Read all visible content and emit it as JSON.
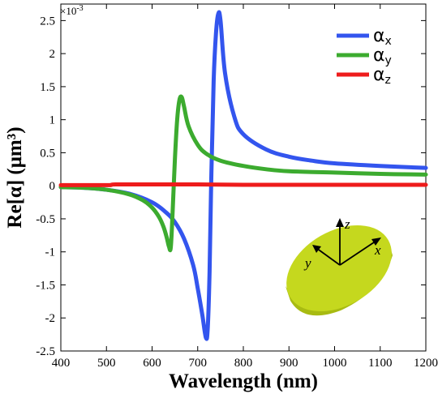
{
  "chart_data": {
    "type": "line",
    "xlabel": "Wavelength (nm)",
    "ylabel": "Re[α] (μm³)",
    "y_multiplier": "×10",
    "y_multiplier_exp": "-3",
    "xlim": [
      400,
      1200
    ],
    "ylim": [
      -2.5,
      2.75
    ],
    "x_ticks": [
      "400",
      "500",
      "600",
      "700",
      "800",
      "900",
      "1000",
      "1100",
      "1200"
    ],
    "y_ticks": [
      "-2.5",
      "-2",
      "-1.5",
      "-1",
      "-0.5",
      "0",
      "0.5",
      "1",
      "1.5",
      "2",
      "2.5"
    ],
    "legend_position": "top-right",
    "series": [
      {
        "name": "αx",
        "symbol": "α",
        "subscript": "x",
        "color": "#3355ee",
        "x": [
          400,
          450,
          500,
          550,
          600,
          630,
          650,
          670,
          690,
          700,
          710,
          718,
          722,
          726,
          730,
          735,
          740,
          745,
          750,
          760,
          780,
          800,
          850,
          900,
          950,
          1000,
          1100,
          1200
        ],
        "y": [
          -0.02,
          -0.03,
          -0.06,
          -0.12,
          -0.25,
          -0.4,
          -0.55,
          -0.8,
          -1.2,
          -1.55,
          -1.95,
          -2.3,
          -2.15,
          -1.3,
          0.2,
          1.6,
          2.3,
          2.6,
          2.5,
          1.7,
          1.05,
          0.78,
          0.55,
          0.44,
          0.38,
          0.34,
          0.3,
          0.27
        ]
      },
      {
        "name": "αy",
        "symbol": "α",
        "subscript": "y",
        "color": "#3cab2f",
        "x": [
          400,
          450,
          500,
          550,
          580,
          600,
          615,
          625,
          632,
          637,
          641,
          645,
          650,
          655,
          660,
          665,
          670,
          680,
          700,
          720,
          750,
          800,
          850,
          900,
          1000,
          1100,
          1200
        ],
        "y": [
          -0.02,
          -0.03,
          -0.06,
          -0.13,
          -0.22,
          -0.33,
          -0.47,
          -0.62,
          -0.78,
          -0.92,
          -0.93,
          -0.4,
          0.4,
          1.0,
          1.3,
          1.34,
          1.2,
          0.9,
          0.62,
          0.48,
          0.38,
          0.3,
          0.25,
          0.22,
          0.2,
          0.18,
          0.17
        ]
      },
      {
        "name": "αz",
        "symbol": "α",
        "subscript": "z",
        "color": "#ee1c1c",
        "x": [
          400,
          500,
          520,
          600,
          700,
          800,
          900,
          1000,
          1100,
          1200
        ],
        "y": [
          0.01,
          0.01,
          0.02,
          0.02,
          0.02,
          0.015,
          0.015,
          0.015,
          0.015,
          0.015
        ]
      }
    ]
  },
  "inset": {
    "axes": [
      "z",
      "y",
      "x"
    ],
    "disk_color": "#c5d81e",
    "disk_side_color": "#a8bb12"
  }
}
